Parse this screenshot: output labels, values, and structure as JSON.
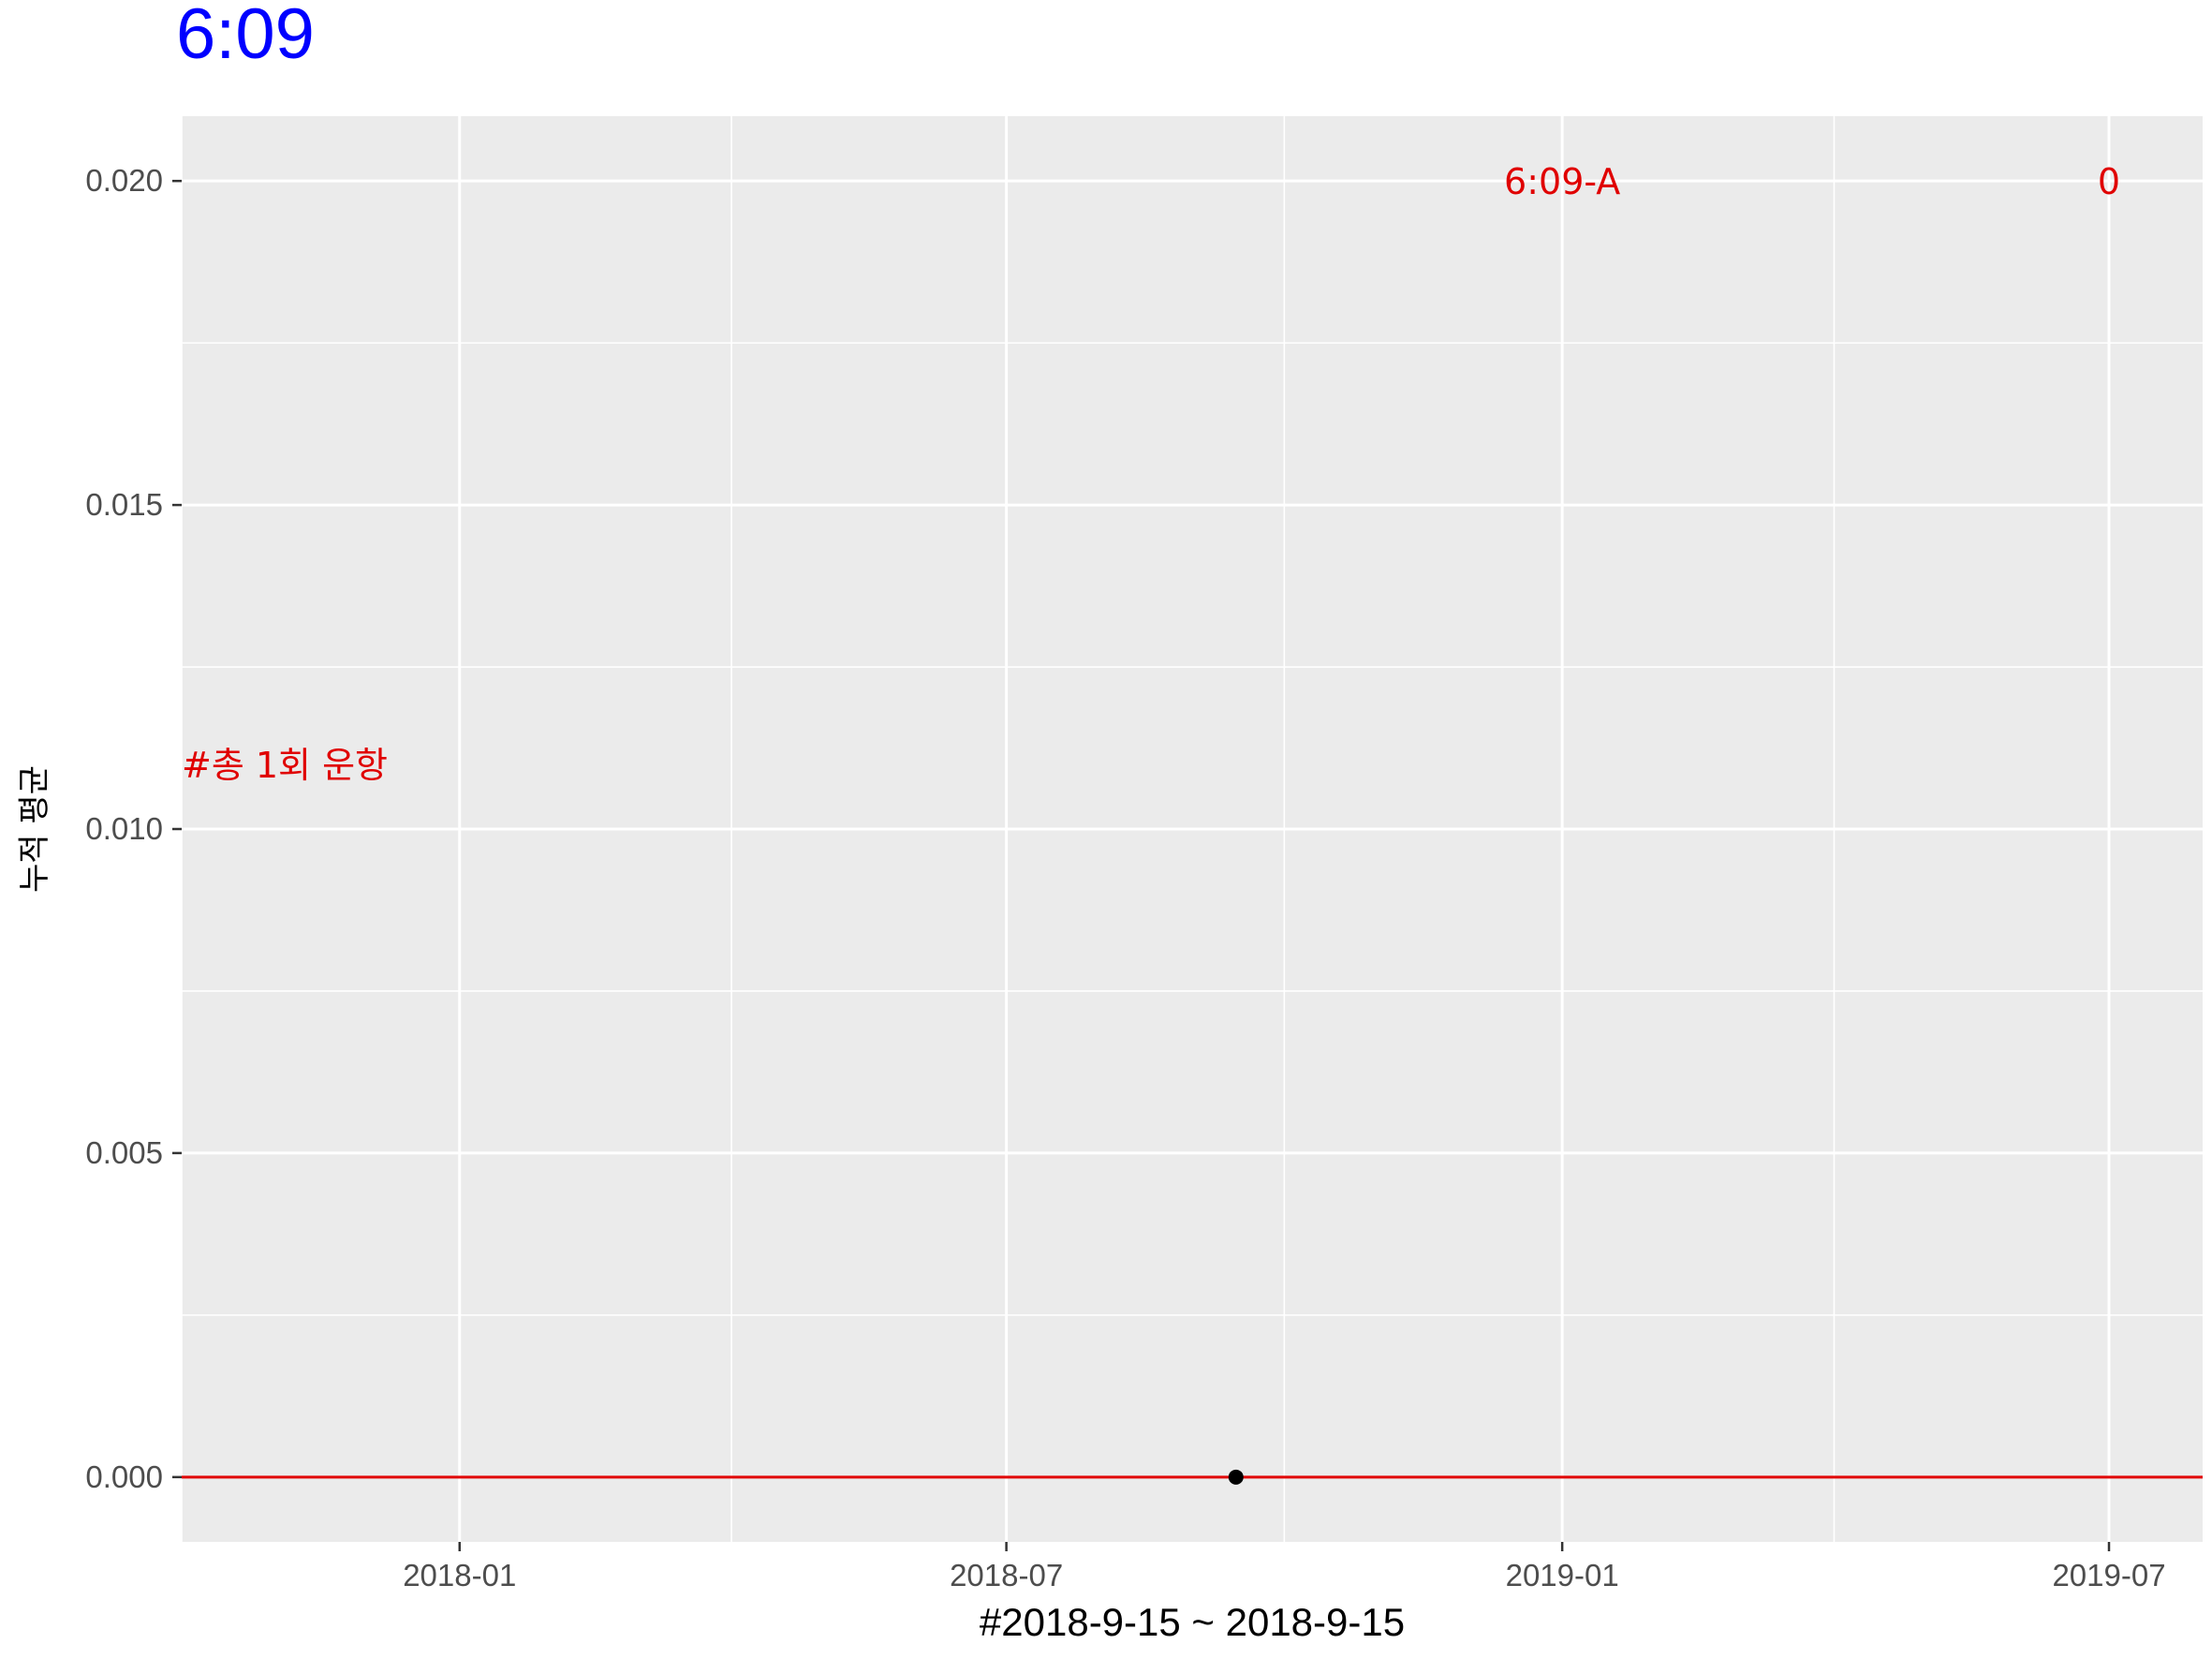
{
  "chart_data": {
    "type": "scatter",
    "title": "6:09",
    "xlabel": "#2018-9-15 ~ 2018-9-15",
    "ylabel": "누적 평균",
    "x_type": "date",
    "xlim": [
      "2017-10-01",
      "2019-08-01"
    ],
    "ylim": [
      -0.001,
      0.021
    ],
    "x_ticks": [
      {
        "date": "2018-01-01",
        "label": "2018-01"
      },
      {
        "date": "2018-07-01",
        "label": "2018-07"
      },
      {
        "date": "2019-01-01",
        "label": "2019-01"
      },
      {
        "date": "2019-07-01",
        "label": "2019-07"
      }
    ],
    "x_minor": [
      "2017-10-01",
      "2018-04-01",
      "2018-10-01",
      "2019-04-01"
    ],
    "y_ticks": [
      {
        "value": 0.0,
        "label": "0.000"
      },
      {
        "value": 0.005,
        "label": "0.005"
      },
      {
        "value": 0.01,
        "label": "0.010"
      },
      {
        "value": 0.015,
        "label": "0.015"
      },
      {
        "value": 0.02,
        "label": "0.020"
      }
    ],
    "y_minor": [
      0.0025,
      0.0075,
      0.0125,
      0.0175
    ],
    "points": [
      {
        "x": "2018-09-15",
        "y": 0
      }
    ],
    "hline": {
      "y": 0,
      "color": "#e00000"
    },
    "annotations": [
      {
        "text": "6:09-A",
        "x": "2019-01-01",
        "y": 0.02,
        "anchor": "middle"
      },
      {
        "text": "0",
        "x": "2019-07-01",
        "y": 0.02,
        "anchor": "middle"
      },
      {
        "text": "#총 1회 운항",
        "x": "2017-10-01",
        "y": 0.011,
        "anchor": "start"
      }
    ],
    "grid": true,
    "colors": {
      "title": "#0000ff",
      "annotation": "#e00000",
      "panel_bg": "#ebebeb",
      "grid": "#ffffff",
      "point": "#000000"
    }
  }
}
